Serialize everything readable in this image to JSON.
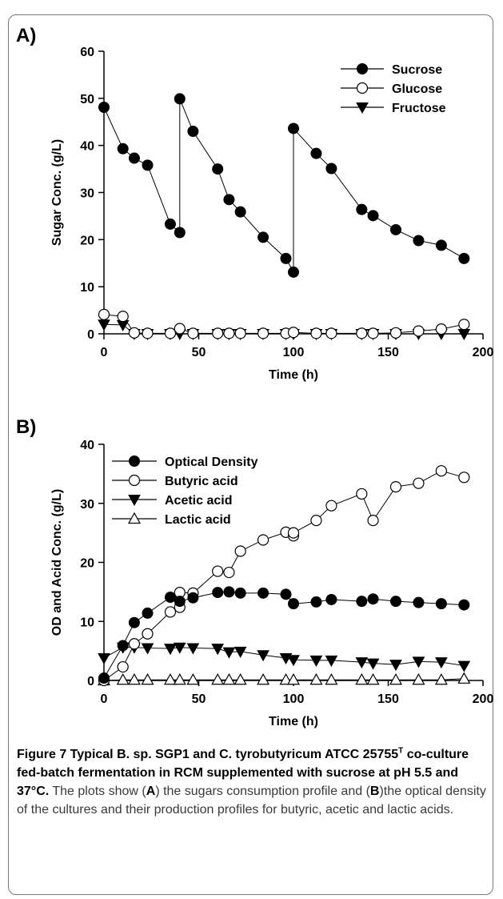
{
  "chart_data": [
    {
      "type": "scatter",
      "panel_label": "A)",
      "xlabel": "Time (h)",
      "ylabel": "Sugar Conc. (g/L)",
      "xlim": [
        0,
        200
      ],
      "ylim": [
        0,
        60
      ],
      "xticks": [
        0,
        50,
        100,
        150,
        200
      ],
      "yticks": [
        0,
        10,
        20,
        30,
        40,
        50,
        60
      ],
      "grid": false,
      "legend_position": "top-right",
      "series": [
        {
          "name": "Sucrose",
          "marker": "filled-circle",
          "x": [
            0,
            10,
            16,
            23,
            35,
            40,
            40,
            47,
            60,
            66,
            72,
            84,
            96,
            100,
            100,
            112,
            120,
            136,
            142,
            154,
            166,
            178,
            190
          ],
          "y": [
            48.1,
            39.3,
            37.3,
            35.8,
            23.3,
            21.5,
            49.9,
            43.0,
            35.0,
            28.5,
            25.9,
            20.5,
            16.0,
            13.1,
            43.6,
            38.3,
            35.1,
            26.4,
            25.1,
            22.1,
            19.8,
            18.8,
            16.0
          ]
        },
        {
          "name": "Glucose",
          "marker": "open-circle",
          "x": [
            0,
            10,
            16,
            23,
            35,
            40,
            47,
            60,
            66,
            72,
            84,
            96,
            100,
            112,
            120,
            136,
            142,
            154,
            166,
            178,
            190
          ],
          "y": [
            4.1,
            3.7,
            0.2,
            0.1,
            0.1,
            1.1,
            0.1,
            0.1,
            0.1,
            0.1,
            0.1,
            0.1,
            0.3,
            0.1,
            0.1,
            0.1,
            0.1,
            0.2,
            0.6,
            1.0,
            2.0
          ]
        },
        {
          "name": "Fructose",
          "marker": "filled-triangle-down",
          "x": [
            0,
            10,
            16,
            23,
            35,
            40,
            47,
            60,
            66,
            72,
            84,
            96,
            100,
            112,
            120,
            136,
            142,
            154,
            166,
            178,
            190
          ],
          "y": [
            2.0,
            1.9,
            0.0,
            0.0,
            0.0,
            0.0,
            0.0,
            0.0,
            0.0,
            0.0,
            0.0,
            0.0,
            0.0,
            0.0,
            0.0,
            0.0,
            0.0,
            0.0,
            0.0,
            0.0,
            0.0
          ]
        }
      ]
    },
    {
      "type": "scatter",
      "panel_label": "B)",
      "xlabel": "Time (h)",
      "ylabel": "OD and Acid Conc. (g/L)",
      "xlim": [
        0,
        200
      ],
      "ylim": [
        0,
        40
      ],
      "xticks": [
        0,
        50,
        100,
        150,
        200
      ],
      "yticks": [
        0,
        10,
        20,
        30,
        40
      ],
      "grid": false,
      "legend_position": "top-left",
      "series": [
        {
          "name": "Optical Density",
          "marker": "filled-circle",
          "x": [
            0,
            10,
            16,
            23,
            35,
            40,
            47,
            60,
            66,
            72,
            84,
            96,
            100,
            112,
            120,
            136,
            142,
            154,
            166,
            178,
            190
          ],
          "y": [
            0.4,
            5.9,
            9.8,
            11.4,
            14.1,
            13.4,
            14.0,
            14.9,
            15.0,
            14.8,
            14.8,
            14.6,
            13.0,
            13.3,
            13.7,
            13.4,
            13.8,
            13.4,
            13.2,
            13.0,
            12.8
          ]
        },
        {
          "name": "Butyric acid",
          "marker": "open-circle",
          "x": [
            0,
            10,
            16,
            23,
            35,
            40,
            40,
            47,
            60,
            66,
            72,
            84,
            96,
            100,
            100,
            112,
            120,
            136,
            142,
            154,
            166,
            178,
            190
          ],
          "y": [
            0.0,
            2.3,
            6.2,
            7.9,
            11.6,
            12.4,
            14.9,
            14.8,
            18.5,
            18.3,
            21.9,
            23.8,
            25.1,
            24.5,
            25.0,
            27.1,
            29.6,
            31.6,
            27.1,
            32.8,
            33.4,
            35.5,
            34.4
          ]
        },
        {
          "name": "Acetic acid",
          "marker": "filled-triangle-down",
          "x": [
            0,
            10,
            16,
            23,
            35,
            40,
            47,
            60,
            66,
            72,
            84,
            96,
            100,
            112,
            120,
            136,
            142,
            154,
            166,
            178,
            190
          ],
          "y": [
            3.8,
            5.6,
            5.6,
            5.5,
            5.4,
            5.6,
            5.5,
            5.4,
            4.8,
            4.9,
            4.3,
            3.8,
            3.5,
            3.4,
            3.4,
            3.1,
            2.9,
            2.7,
            3.2,
            3.1,
            2.5
          ]
        },
        {
          "name": "Lactic acid",
          "marker": "open-triangle-up",
          "x": [
            0,
            10,
            16,
            23,
            35,
            40,
            47,
            60,
            66,
            72,
            84,
            96,
            100,
            112,
            120,
            136,
            142,
            154,
            166,
            178,
            190
          ],
          "y": [
            0.0,
            0.1,
            0.1,
            0.1,
            0.1,
            0.1,
            0.1,
            0.1,
            0.1,
            0.1,
            0.1,
            0.1,
            0.1,
            0.1,
            0.1,
            0.1,
            0.1,
            0.1,
            0.1,
            0.1,
            0.3
          ]
        }
      ]
    }
  ],
  "caption": {
    "figure_head": "Figure 7 Typical B. sp. SGP1 and C. tyrobutyricum ATCC 25755",
    "superscript": "T",
    "figure_head_cont": " co-culture fed-batch fermentation in RCM supplemented with sucrose at pH 5.5 and 37°C.",
    "body_1": " The plots show (",
    "bold_a": "A",
    "body_2": ") the sugars consumption profile and (",
    "bold_b": "B",
    "body_3": ")the optical density of the cultures and their production profiles for butyric, acetic and lactic acids."
  }
}
